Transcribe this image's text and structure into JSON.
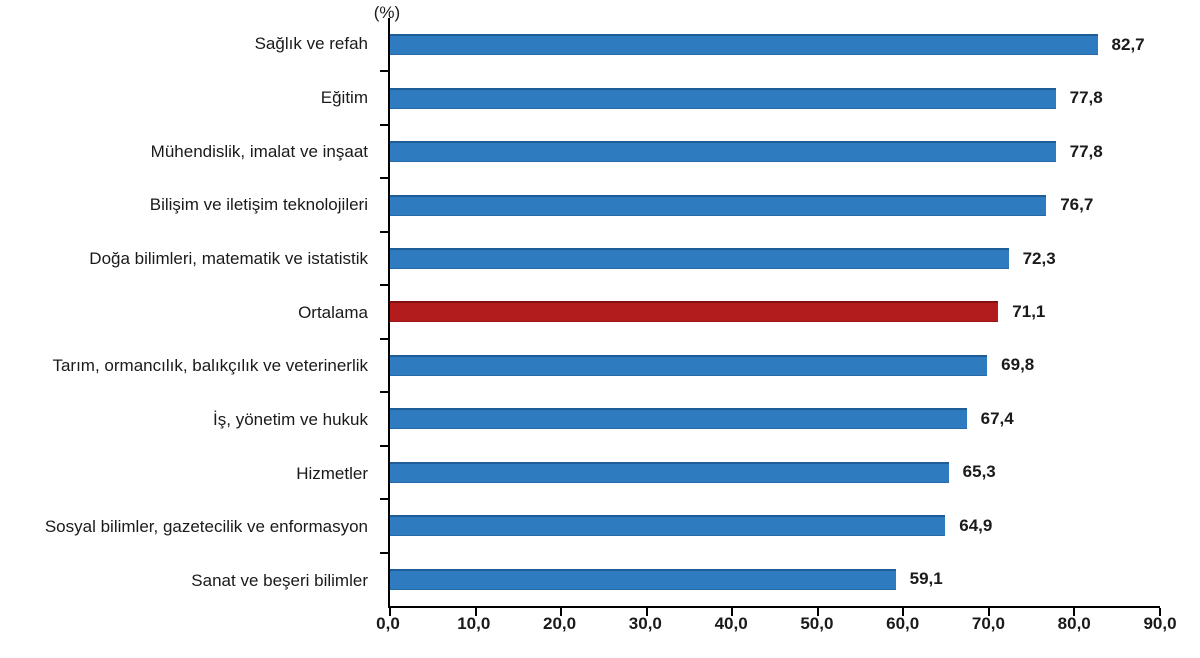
{
  "chart_data": {
    "type": "bar",
    "orientation": "horizontal",
    "title": "",
    "unit_label": "(%)",
    "xlabel": "",
    "ylabel": "",
    "xlim": [
      0,
      90
    ],
    "grid": false,
    "legend": "none",
    "categories": [
      "Sağlık ve refah",
      "Eğitim",
      "Mühendislik, imalat ve inşaat",
      "Bilişim ve iletişim teknolojileri",
      "Doğa bilimleri, matematik ve istatistik",
      "Ortalama",
      "Tarım, ormancılık, balıkçılık ve veterinerlik",
      "İş, yönetim ve hukuk",
      "Hizmetler",
      "Sosyal bilimler, gazetecilik ve enformasyon",
      "Sanat ve beşeri bilimler"
    ],
    "values": [
      82.7,
      77.8,
      77.8,
      76.7,
      72.3,
      71.1,
      69.8,
      67.4,
      65.3,
      64.9,
      59.1
    ],
    "value_labels": [
      "82,7",
      "77,8",
      "77,8",
      "76,7",
      "72,3",
      "71,1",
      "69,8",
      "67,4",
      "65,3",
      "64,9",
      "59,1"
    ],
    "highlight_index": 5,
    "x_tick_labels": [
      "0,0",
      "10,0",
      "20,0",
      "30,0",
      "40,0",
      "50,0",
      "60,0",
      "70,0",
      "80,0",
      "90,0"
    ],
    "colors": {
      "bar_default": "#2e7bc0",
      "bar_highlight": "#b21c1c",
      "axis": "#000000",
      "text": "#1a1a1a",
      "background": "#ffffff"
    }
  }
}
